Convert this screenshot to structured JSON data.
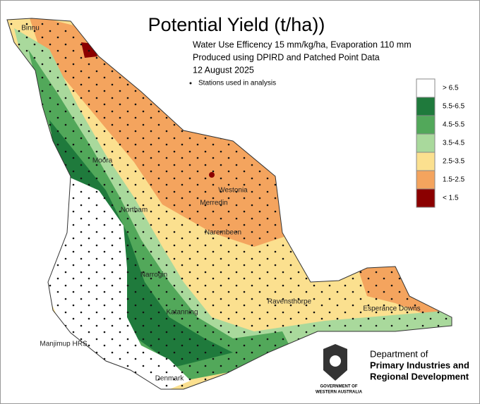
{
  "header": {
    "title": "Potential Yield (t/ha))",
    "lines": [
      "Water Use Efficency 15 mm/kg/ha, Evaporation 110 mm",
      "Produced using DPIRD and Patched Point Data",
      "12 August 2025"
    ],
    "stations_note": "Stations used in analysis"
  },
  "legend": [
    {
      "label": "> 6.5",
      "color": "#ffffff"
    },
    {
      "label": "5.5-6.5",
      "color": "#1f7a3c"
    },
    {
      "label": "4.5-5.5",
      "color": "#52a85a"
    },
    {
      "label": "3.5-4.5",
      "color": "#a9d99c"
    },
    {
      "label": "2.5-3.5",
      "color": "#fbe08f"
    },
    {
      "label": "1.5-2.5",
      "color": "#f4a45e"
    },
    {
      "label": "< 1.5",
      "color": "#8b0000"
    }
  ],
  "towns": [
    "Binnu",
    "Moora",
    "Westonia",
    "Merredin",
    "Northam",
    "Narembeen",
    "Narrogin",
    "Ravensthorpe",
    "Esperance Downs",
    "Katanning",
    "Manjimup HRS",
    "Denmark"
  ],
  "department": {
    "lines": [
      "Department of",
      "Primary Industries and",
      "Regional Development"
    ],
    "government": [
      "GOVERNMENT OF",
      "WESTERN AUSTRALIA"
    ]
  }
}
